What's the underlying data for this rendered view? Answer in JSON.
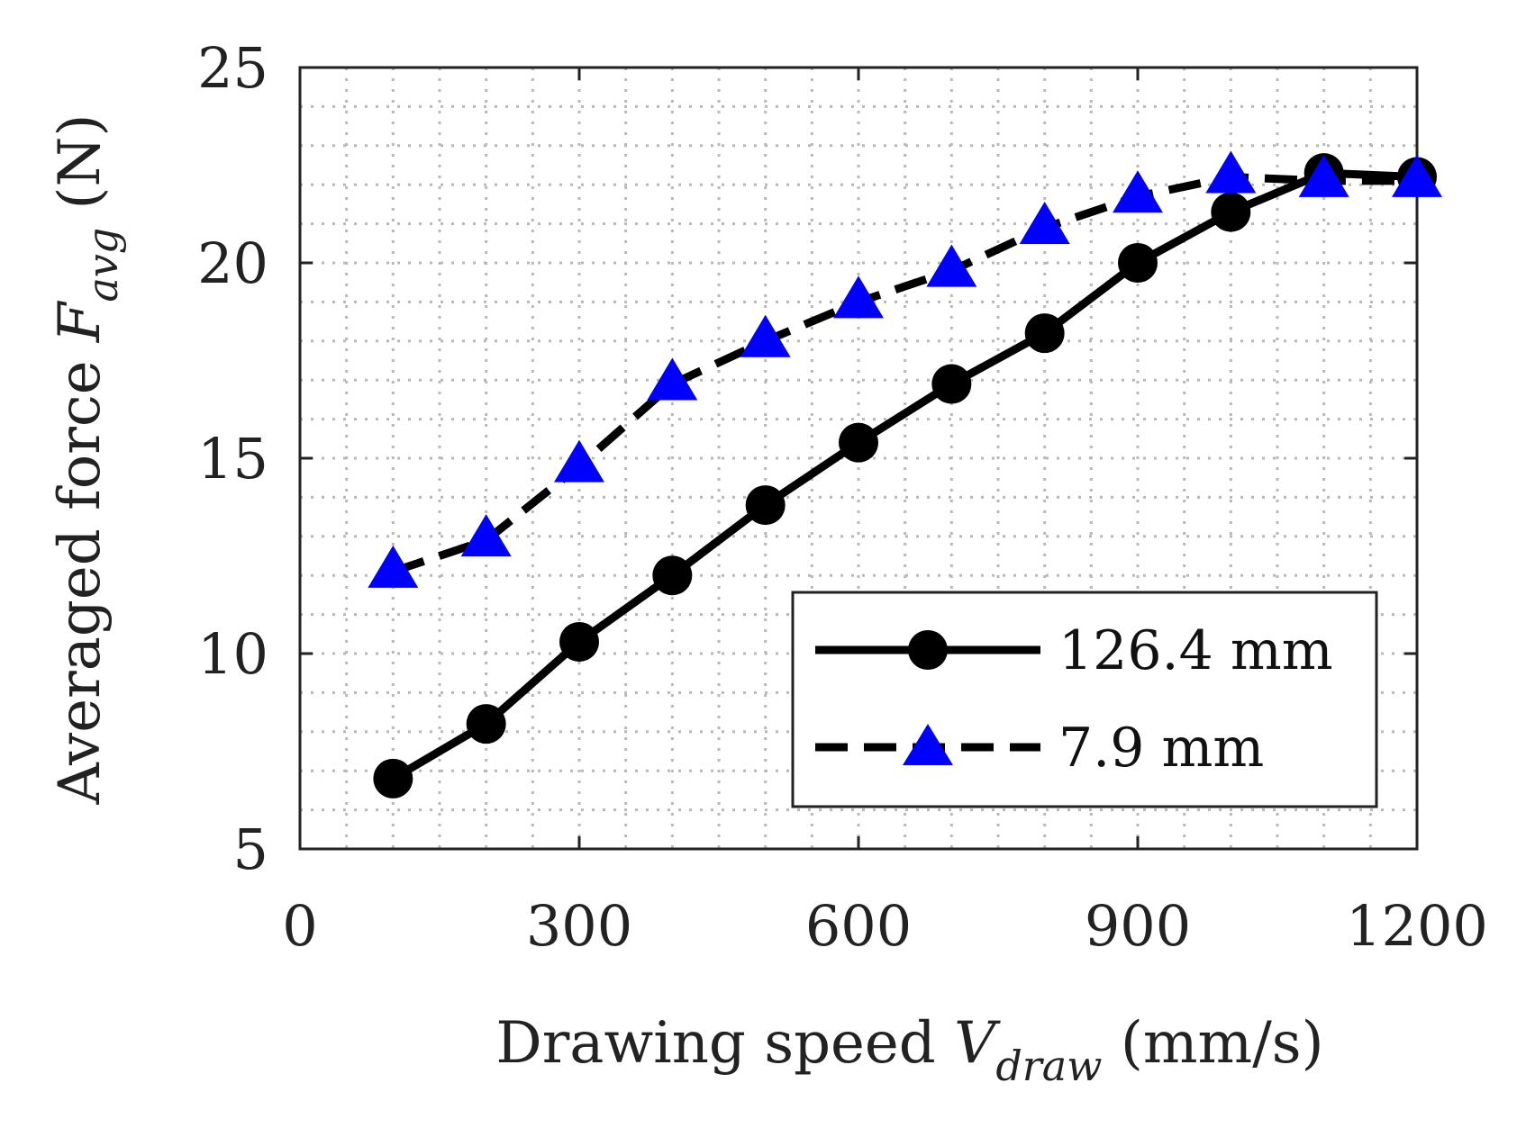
{
  "chart_data": {
    "type": "line",
    "title": "",
    "xlabel": {
      "main": "Drawing speed ",
      "var": "V",
      "sub": "draw",
      "unit": " (mm/s)"
    },
    "ylabel": {
      "main": "Averaged force ",
      "var": "F",
      "sub": "avg",
      "unit": "  (N)"
    },
    "xlim": [
      0,
      1200
    ],
    "ylim": [
      5,
      25
    ],
    "xticks": [
      0,
      300,
      600,
      900,
      1200
    ],
    "yticks": [
      5,
      10,
      15,
      20,
      25
    ],
    "xtick_labels": [
      "0",
      "300",
      "600",
      "900",
      "1200"
    ],
    "ytick_labels": [
      "5",
      "10",
      "15",
      "20",
      "25"
    ],
    "grid": true,
    "legend_position": "lower-right",
    "series": [
      {
        "name": "126.4 mm",
        "style": "solid",
        "marker": "circle",
        "marker_color": "#000000",
        "line_color": "#000000",
        "x": [
          100,
          200,
          300,
          400,
          500,
          600,
          700,
          800,
          900,
          1000,
          1100,
          1200
        ],
        "y": [
          6.8,
          8.2,
          10.3,
          12.0,
          13.8,
          15.4,
          16.9,
          18.2,
          20.0,
          21.3,
          22.3,
          22.2
        ]
      },
      {
        "name": "7.9 mm",
        "style": "dashed",
        "marker": "triangle",
        "marker_color": "#0000ff",
        "line_color": "#000000",
        "x": [
          100,
          200,
          300,
          400,
          500,
          600,
          700,
          800,
          900,
          1000,
          1100,
          1200
        ],
        "y": [
          12.1,
          12.9,
          14.8,
          16.9,
          18.0,
          19.0,
          19.8,
          20.9,
          21.7,
          22.2,
          22.1,
          22.1
        ]
      }
    ]
  }
}
